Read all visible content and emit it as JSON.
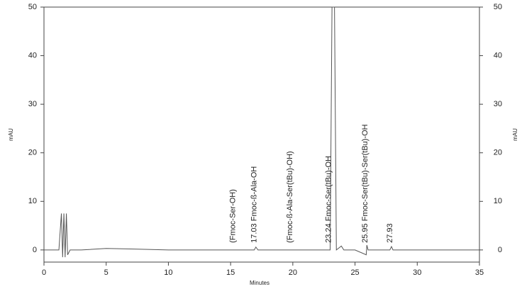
{
  "chart_data": {
    "type": "line",
    "x_label": "Minutes",
    "y_label": "mAU",
    "y2_label": "mAU",
    "xlim": [
      0,
      35
    ],
    "xticks": [
      0,
      5,
      10,
      15,
      20,
      25,
      30,
      35
    ],
    "ylim": [
      -2.5,
      50
    ],
    "yticks": [
      0,
      10,
      20,
      30,
      40,
      50
    ],
    "y2lim": [
      -2.5,
      50
    ],
    "y2ticks": [
      0,
      10,
      20,
      30,
      40,
      50
    ],
    "series": [
      {
        "color": "#555555",
        "x": [
          0,
          1.2,
          1.4,
          1.5,
          1.6,
          1.7,
          1.8,
          1.9,
          2.1,
          3,
          5,
          7,
          10,
          15,
          16.9,
          17.03,
          17.2,
          20,
          23.0,
          23.15,
          23.24,
          23.35,
          23.5,
          23.9,
          24.1,
          25,
          25.9,
          25.95,
          26.05,
          27.8,
          27.93,
          28.05,
          30,
          35
        ],
        "values": [
          0,
          0,
          7.5,
          -1.5,
          7.5,
          -1.5,
          7.5,
          -1.0,
          0,
          0,
          0.3,
          0.2,
          0,
          0,
          0,
          0.6,
          0,
          0,
          0,
          50,
          50,
          50,
          0,
          0.8,
          0,
          0,
          -1,
          1,
          0,
          0,
          0.7,
          0,
          0,
          0
        ]
      }
    ],
    "annotations": [
      {
        "label": "(Fmoc-Ser-OH)",
        "x": 15.3
      },
      {
        "label": "17.03  Fmoc-ß-Ala-OH",
        "x": 17.03
      },
      {
        "label": "(Fmoc-ß-Ala-Ser(tBu)-OH)",
        "x": 19.9
      },
      {
        "label": "23.24  Fmoc-Ser(tBu)-OH",
        "x": 23.0
      },
      {
        "label": "25.95  Fmoc-Ser(tBu)-Ser(tBu)-OH",
        "x": 25.95
      },
      {
        "label": "27.93",
        "x": 27.93
      }
    ]
  }
}
